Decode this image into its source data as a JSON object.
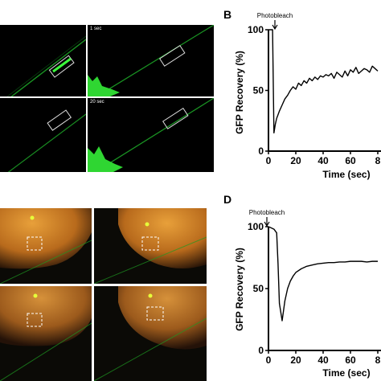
{
  "panels": {
    "A": {
      "frame_labels": [
        "1 sec",
        "20 sec"
      ]
    },
    "B": {
      "letter": "B"
    },
    "D": {
      "letter": "D"
    }
  },
  "chart_data": [
    {
      "type": "line",
      "panel": "B",
      "annotation": "Photobleach",
      "xlabel": "Time (sec)",
      "ylabel": "GFP Recovery (%)",
      "xticks": [
        "0",
        "20",
        "40",
        "60",
        "8"
      ],
      "yticks": [
        "0",
        "50",
        "100"
      ],
      "xlim": [
        0,
        80
      ],
      "ylim": [
        0,
        100
      ],
      "series": [
        {
          "x": [
            0,
            2,
            3,
            4,
            5,
            6,
            7,
            8,
            10,
            12,
            14,
            16,
            18,
            20,
            22,
            24,
            26,
            28,
            30,
            32,
            34,
            36,
            38,
            40,
            42,
            44,
            46,
            48,
            50,
            52,
            54,
            56,
            58,
            60,
            62,
            64,
            66,
            68,
            70,
            72,
            74,
            76,
            78,
            80
          ],
          "values": [
            100,
            100,
            100,
            15,
            22,
            27,
            30,
            33,
            38,
            43,
            46,
            50,
            53,
            51,
            56,
            54,
            58,
            56,
            60,
            58,
            61,
            59,
            62,
            61,
            63,
            62,
            64,
            60,
            65,
            63,
            61,
            66,
            62,
            67,
            65,
            69,
            64,
            66,
            68,
            67,
            65,
            70,
            68,
            66
          ]
        }
      ]
    },
    {
      "type": "line",
      "panel": "D",
      "annotation": "Photobleach",
      "xlabel": "Time (sec)",
      "ylabel": "GFP Recovery (%)",
      "xticks": [
        "0",
        "20",
        "40",
        "60",
        "8"
      ],
      "yticks": [
        "0",
        "50",
        "100"
      ],
      "xlim": [
        0,
        80
      ],
      "ylim": [
        0,
        100
      ],
      "series": [
        {
          "x": [
            0,
            2,
            4,
            6,
            7,
            8,
            10,
            12,
            14,
            16,
            18,
            20,
            24,
            28,
            32,
            36,
            40,
            44,
            48,
            52,
            56,
            60,
            64,
            68,
            72,
            76,
            80
          ],
          "values": [
            100,
            99,
            98,
            95,
            70,
            38,
            24,
            40,
            50,
            56,
            60,
            63,
            66,
            68,
            69,
            70,
            70.5,
            71,
            71,
            71.5,
            71.5,
            72,
            72,
            72,
            71.5,
            72,
            72
          ]
        }
      ]
    }
  ]
}
